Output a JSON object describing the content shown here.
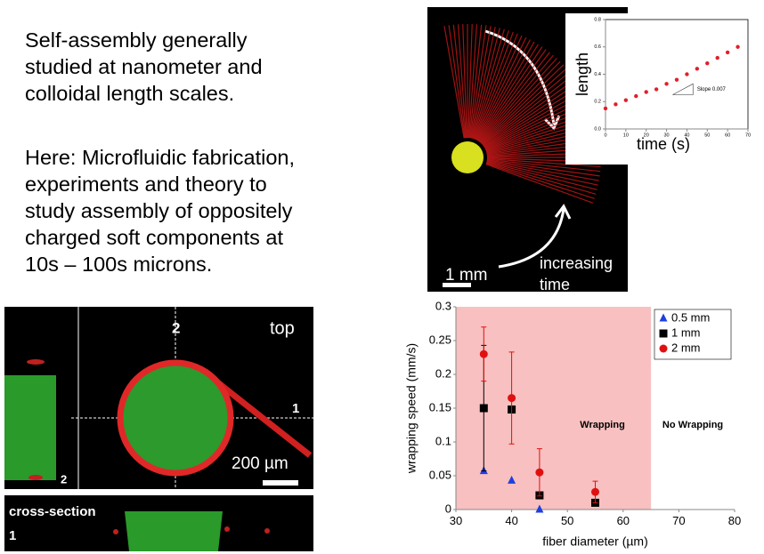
{
  "text": {
    "paragraph_1": [
      "Self-assembly generally",
      "studied at nanometer and",
      "colloidal length scales."
    ],
    "paragraph_2": [
      "Here: Microfluidic fabrication,",
      "experiments and theory to",
      "study assembly of oppositely",
      "charged soft components at",
      "10s – 100s microns."
    ]
  },
  "micrograph": {
    "top_label": "top",
    "line_2_label": "2",
    "line_1_label": "1",
    "scale_label": "200 µm",
    "corner_label": "2",
    "cross_section_title": "cross-section",
    "cross_section_label": "1"
  },
  "fan_image": {
    "scale_label": "1 mm",
    "arrow_label": [
      "increasing",
      "time"
    ]
  },
  "chart_data": [
    {
      "type": "scatter",
      "xlabel": "time (s)",
      "ylabel": "length",
      "annotation": "Slope 0.007",
      "series": [
        {
          "color": "#e0202a",
          "x": [
            0,
            5,
            10,
            15,
            20,
            25,
            30,
            35,
            40,
            45,
            50,
            55,
            60,
            65
          ],
          "values": [
            0.15,
            0.18,
            0.21,
            0.24,
            0.27,
            0.29,
            0.33,
            0.36,
            0.4,
            0.44,
            0.48,
            0.52,
            0.56,
            0.6
          ]
        }
      ],
      "xlim": [
        0,
        70
      ],
      "xticks": [
        0,
        10,
        20,
        30,
        40,
        50,
        60,
        70
      ],
      "ylim": [
        0,
        0.8
      ],
      "yticks": [
        {
          "value": 0,
          "label": "0.0"
        },
        0.2,
        0.4,
        0.6,
        0.8
      ]
    },
    {
      "type": "scatter",
      "xlabel": "fiber diameter (µm)",
      "ylabel": "wrapping speed (mm/s)",
      "region": {
        "range": [
          30,
          65
        ],
        "color": "#f8c0c0",
        "label": "Wrapping"
      },
      "outside_label": "No Wrapping",
      "legend": "top-right",
      "series": [
        {
          "name": "0.5 mm",
          "color": "#1f3fe0",
          "marker": "triangle",
          "x": [
            35,
            40,
            45
          ],
          "values": [
            0.057,
            0.043,
            0
          ]
        },
        {
          "name": "1 mm",
          "color": "#000000",
          "marker": "square",
          "x": [
            35,
            40,
            45,
            55
          ],
          "values": [
            0.15,
            0.148,
            0.021,
            0.01
          ],
          "errors": [
            0.093,
            null,
            null,
            null
          ]
        },
        {
          "name": "2 mm",
          "color": "#e01010",
          "marker": "circle",
          "x": [
            35,
            40,
            45,
            55
          ],
          "values": [
            0.23,
            0.165,
            0.055,
            0.026
          ],
          "errors": [
            0.04,
            0.068,
            0.035,
            0.016
          ]
        }
      ],
      "xlim": [
        30,
        80
      ],
      "xticks": [
        30,
        40,
        50,
        60,
        70,
        80
      ],
      "ylim": [
        0,
        0.3
      ],
      "yticks": [
        0,
        0.05,
        0.1,
        0.15,
        0.2,
        0.25,
        0.3
      ]
    }
  ]
}
